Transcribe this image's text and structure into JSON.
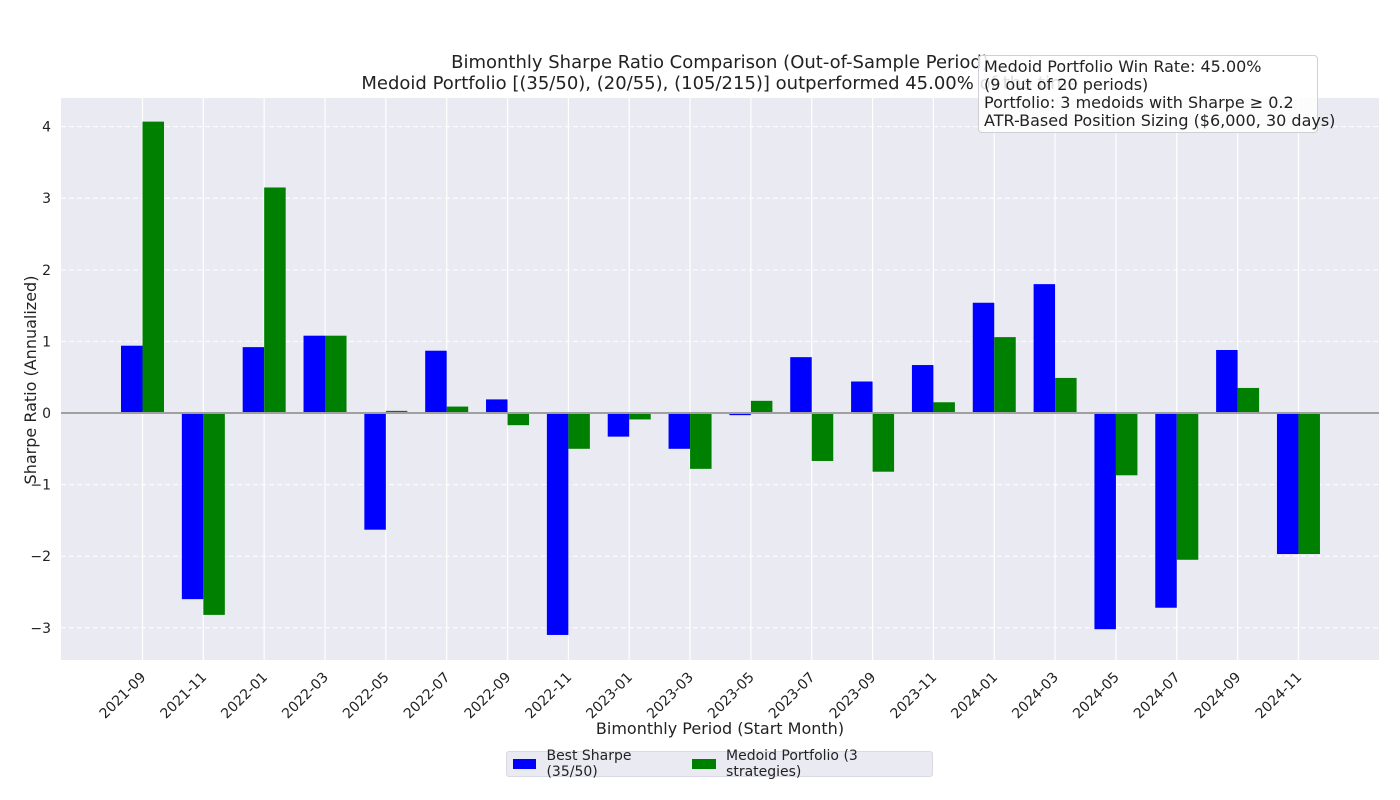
{
  "chart_data": {
    "type": "bar",
    "title": "Bimonthly Sharpe Ratio Comparison (Out-of-Sample Period)",
    "subtitle": "Medoid Portfolio [(35/50), (20/55), (105/215)] outperformed 45.00% of the time",
    "xlabel": "Bimonthly Period (Start Month)",
    "ylabel": "Sharpe Ratio (Annualized)",
    "ylim": [
      -3.45,
      4.4
    ],
    "yticks": [
      -3,
      -2,
      -1,
      0,
      1,
      2,
      3,
      4
    ],
    "ytick_labels": [
      "−3",
      "−2",
      "−1",
      "0",
      "1",
      "2",
      "3",
      "4"
    ],
    "grid": true,
    "legend_position": "bottom-center",
    "categories": [
      "2021-09",
      "2021-11",
      "2022-01",
      "2022-03",
      "2022-05",
      "2022-07",
      "2022-09",
      "2022-11",
      "2023-01",
      "2023-03",
      "2023-05",
      "2023-07",
      "2023-09",
      "2023-11",
      "2024-01",
      "2024-03",
      "2024-05",
      "2024-07",
      "2024-09",
      "2024-11"
    ],
    "series": [
      {
        "name": "Best Sharpe (35/50)",
        "color": "#0000ff",
        "values": [
          0.94,
          -2.6,
          0.92,
          1.08,
          -1.63,
          0.87,
          0.19,
          -3.1,
          -0.33,
          -0.5,
          -0.03,
          0.78,
          0.44,
          0.67,
          1.54,
          1.8,
          -3.02,
          -2.72,
          0.88,
          -1.97
        ]
      },
      {
        "name": "Medoid Portfolio (3 strategies)",
        "color": "#008000",
        "values": [
          4.07,
          -2.82,
          3.15,
          1.08,
          0.03,
          0.09,
          -0.17,
          -0.5,
          -0.09,
          -0.78,
          0.17,
          -0.67,
          -0.82,
          0.15,
          1.06,
          0.49,
          -0.87,
          -2.05,
          0.35,
          -1.97
        ]
      }
    ],
    "annotation_lines": [
      "Medoid Portfolio Win Rate: 45.00%",
      "(9 out of 20 periods)",
      "Portfolio: 3 medoids with Sharpe ≥ 0.2",
      "ATR-Based Position Sizing ($6,000, 30 days)"
    ]
  },
  "colors": {
    "plot_background": "#eaeaf2",
    "grid": "#ffffff",
    "zero_line": "#a0a0a0"
  }
}
